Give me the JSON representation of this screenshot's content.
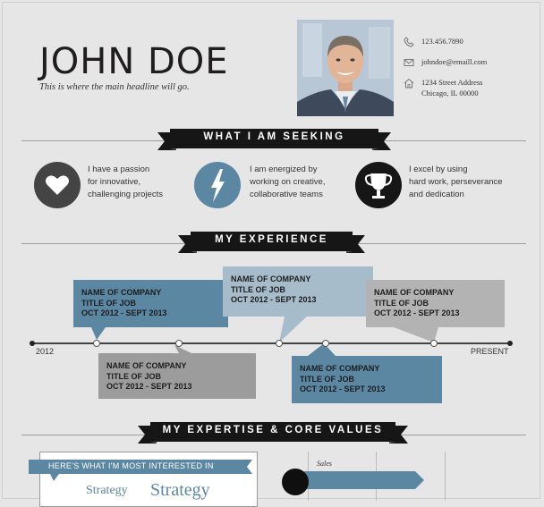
{
  "header": {
    "name": "JOHN DOE",
    "headline": "This is where the main headline will go."
  },
  "contact": {
    "phone": "123.456.7890",
    "email": "johndoe@emaill.com",
    "address_line1": "1234 Street Address",
    "address_line2": "Chicago, IL 00000",
    "phone_icon": "phone-icon",
    "email_icon": "envelope-icon",
    "address_icon": "house-icon"
  },
  "sections": {
    "seeking": "WHAT I AM SEEKING",
    "experience": "MY EXPERIENCE",
    "expertise": "MY EXPERTISE & CORE VALUES"
  },
  "values": [
    {
      "icon": "heart-icon",
      "line1": "I have a passion",
      "line2": "for innovative,",
      "line3": "challenging projects"
    },
    {
      "icon": "lightning-icon",
      "line1": "I am energized by",
      "line2": "working on creative,",
      "line3": "collaborative teams"
    },
    {
      "icon": "trophy-icon",
      "line1": "I excel by using",
      "line2": "hard work, perseverance",
      "line3": "and dedication"
    }
  ],
  "timeline": {
    "start_label": "2012",
    "end_label": "PRESENT",
    "jobs": [
      {
        "company": "NAME OF COMPANY",
        "title": "TITLE OF JOB",
        "dates": "OCT 2012 - SEPT 2013"
      },
      {
        "company": "NAME OF COMPANY",
        "title": "TITLE OF JOB",
        "dates": "OCT 2012 - SEPT 2013"
      },
      {
        "company": "NAME OF COMPANY",
        "title": "TITLE OF JOB",
        "dates": "OCT 2012 - SEPT 2013"
      },
      {
        "company": "NAME OF COMPANY",
        "title": "TITLE OF JOB",
        "dates": "OCT 2012 - SEPT 2013"
      },
      {
        "company": "NAME OF COMPANY",
        "title": "TITLE OF JOB",
        "dates": "OCT 2012 - SEPT 2013"
      }
    ]
  },
  "expertise": {
    "interest_banner": "HERE'S WHAT I'M MOST INTERESTED IN",
    "word_small": "Strategy",
    "word_large": "Strategy",
    "skill_label": "Sales"
  },
  "colors": {
    "blue": "#5b87a3",
    "light_blue": "#a7bccb",
    "gray": "#9c9c9c",
    "light_gray": "#b3b3b3",
    "black": "#161616",
    "background": "#e7e6e6"
  }
}
